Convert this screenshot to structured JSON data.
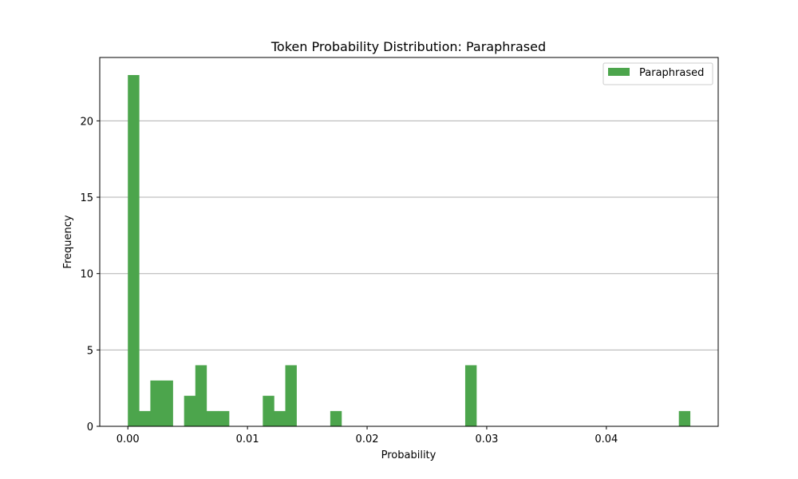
{
  "chart_data": {
    "type": "bar",
    "title": "Token Probability Distribution: Paraphrased",
    "xlabel": "Probability",
    "ylabel": "Frequency",
    "xlim": [
      -0.00235,
      0.04935
    ],
    "ylim": [
      0,
      24.15
    ],
    "x_ticks": [
      0.0,
      0.01,
      0.02,
      0.03,
      0.04
    ],
    "x_tick_labels": [
      "0.00",
      "0.01",
      "0.02",
      "0.03",
      "0.04"
    ],
    "y_ticks": [
      0,
      5,
      10,
      15,
      20
    ],
    "y_tick_labels": [
      "0",
      "5",
      "10",
      "15",
      "20"
    ],
    "grid": "y",
    "legend_position": "top-right",
    "bin_start": 0.0,
    "bin_width": 0.00094,
    "series": [
      {
        "name": "Paraphrased",
        "color": "#4ca54c",
        "values": [
          23,
          1,
          3,
          3,
          0,
          2,
          4,
          1,
          1,
          0,
          0,
          0,
          2,
          1,
          4,
          0,
          0,
          0,
          1,
          0,
          0,
          0,
          0,
          0,
          0,
          0,
          0,
          0,
          0,
          0,
          4,
          0,
          0,
          0,
          0,
          0,
          0,
          0,
          0,
          0,
          0,
          0,
          0,
          0,
          0,
          0,
          0,
          0,
          0,
          1
        ]
      }
    ]
  }
}
